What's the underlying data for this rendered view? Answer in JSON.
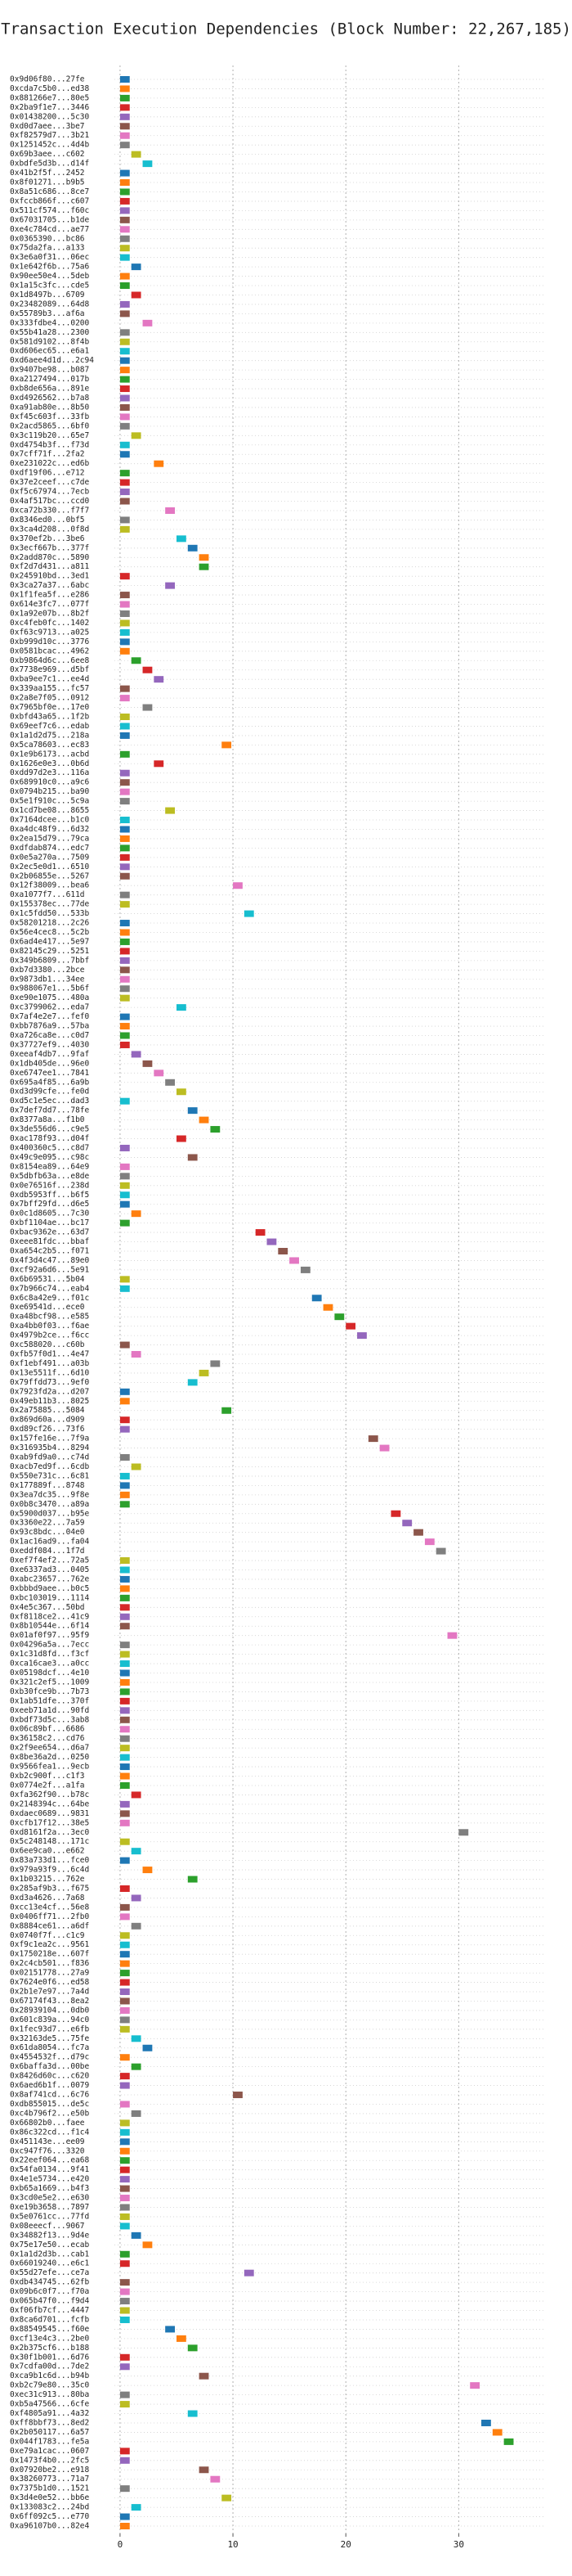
{
  "chart_data": {
    "type": "timeline",
    "title": "Transaction Execution Dependencies (Block Number: 22,267,185)",
    "categories": [
      "0x9d06f80...27fe",
      "0xcda7c5b0...ed38",
      "0x881266e7...80e5",
      "0x2ba9f1e7...3446",
      "0x01438200...5c30",
      "0xd0d7aee...3be7",
      "0xf82579d7...3b21",
      "0x1251452c...4d4b",
      "0x69b3aee...c602",
      "0xbdfe5d3b...d14f",
      "0x41b2f5f...2452",
      "0x8f01271...b9b5",
      "0x8a51c686...8ce7",
      "0xfccb866f...c607",
      "0x511cf574...f60c",
      "0x67031705...b1de",
      "0xe4c784cd...ae77",
      "0x0365390...bc86",
      "0x75da2fa...a133",
      "0x3e6a0f31...06ec",
      "0x1e642f6b...75a6",
      "0x90ee50e4...5deb",
      "0x1a15c3fc...cde5",
      "0x1d8497b...6709",
      "0x23482089...64d8",
      "0x55789b3...af6a",
      "0x333fdbe4...0200",
      "0x55b41a28...2300",
      "0x581d9102...8f4b",
      "0xd606ec65...e6a1",
      "0xd6aee4d1d...2c94",
      "0x9407be98...b087",
      "0xa2127494...017b",
      "0xb8de656a...891e",
      "0xd4926562...b7a8",
      "0xa91ab80e...8b50",
      "0xf45c603f...33fb",
      "0x2acd5865...6bf0",
      "0x3c119b20...65e7",
      "0xd4754b3f...f73d",
      "0x7cff71f...2fa2",
      "0xe231022c...ed6b",
      "0xdf19f06...e712",
      "0x37e2ceef...c7de",
      "0xf5c67974...7ecb",
      "0x4af517bc...ccd0",
      "0xca72b330...f7f7",
      "0x8346ed0...0bf5",
      "0x3ca4d208...0f8d",
      "0x370ef2b...3be6",
      "0x3ecf667b...377f",
      "0x2add870c...5890",
      "0xf2d7d431...a811",
      "0x245910bd...3ed1",
      "0x3ca27a37...6abc",
      "0x1f1fea5f...e286",
      "0x614e3fc7...077f",
      "0x1a92e07b...8b2f",
      "0xc4feb0fc...1402",
      "0xf63c9713...a025",
      "0xb999d10c...3776",
      "0x0581bcac...4962",
      "0xb9864d6c...6ee8",
      "0x7738e969...d5bf",
      "0xba9ee7c1...ee4d",
      "0x339aa155...fc57",
      "0x2a8e7f05...0912",
      "0x7965bf0e...17e0",
      "0xbfd43a65...1f2b",
      "0x69eef7c6...edab",
      "0x1a1d2d75...218a",
      "0x5ca78603...ec83",
      "0x1e9b6173...acbd",
      "0x1626e0e3...0b6d",
      "0xdd97d2e3...116a",
      "0x689910c0...a9c6",
      "0x0794b215...ba90",
      "0x5e1f910c...5c9a",
      "0x1cd7be08...8655",
      "0x7164dcee...b1c0",
      "0xa4dc48f9...6d32",
      "0x2ea15d79...79ca",
      "0xdfdab874...edc7",
      "0x0e5a270a...7509",
      "0x2ec5e0d1...6510",
      "0x2b06855e...5267",
      "0x12f38009...bea6",
      "0xa1077f7...611d",
      "0x155378ec...77de",
      "0x1c5fdd50...533b",
      "0x58201218...2c26",
      "0x56e4cec8...5c2b",
      "0x6ad4e417...5e97",
      "0x82145c29...5251",
      "0x349b6809...7bbf",
      "0xb7d3380...2bce",
      "0x9873db1...34ee",
      "0x988067e1...5b6f",
      "0xe90e1075...480a",
      "0xc3799062...eda7",
      "0x7af4e2e7...fef0",
      "0xbb7876a9...57ba",
      "0xa726ca8e...c0d7",
      "0x37727ef9...4030",
      "0xeeaf4db7...9faf",
      "0x1db405de...96e0",
      "0xe6747ee1...7841",
      "0x695a4f85...6a9b",
      "0xd3d99cfe...fe0d",
      "0xd5c1e5ec...dad3",
      "0x7def7dd7...78fe",
      "0x8377a8a...f1b0",
      "0x3de556d6...c9e5",
      "0xac178f93...d04f",
      "0x400360c5...c8d7",
      "0x49c9e095...c98c",
      "0x8154ea89...64e9",
      "0x5dbfb63a...e8de",
      "0x0e76516f...238d",
      "0xdb5953ff...b6f5",
      "0x7bff29fd...d6e5",
      "0x0c1d8605...7c30",
      "0xbf1104ae...bc17",
      "0xbac9362e...63d7",
      "0xeee81fdc...bbaf",
      "0xa654c2b5...f071",
      "0x4f3d4c47...89e0",
      "0xcf92a6d6...5e91",
      "0x6b69531...5b04",
      "0x7b966c74...eab4",
      "0x6c8a42e9...f01c",
      "0xe69541d...ece0",
      "0xa48bcf98...e585",
      "0xa4bb0f03...f6ae",
      "0x4979b2ce...f6cc",
      "0xc588020...c60b",
      "0xfb57f0d1...4e47",
      "0xf1ebf491...a03b",
      "0x13e5511f...6d10",
      "0x79ffdd73...9ef0",
      "0x7923fd2a...d207",
      "0x49eb11b3...8025",
      "0x2a75885...5084",
      "0x869d60a...d909",
      "0xd89cf26...73f6",
      "0x157fe16e...7f9a",
      "0x316935b4...8294",
      "0xab9fd9a0...c74d",
      "0xacb7ed9f...6cdb",
      "0x550e731c...6c81",
      "0x177889f...8748",
      "0x3ea7dc35...9f8e",
      "0x0b8c3470...a89a",
      "0x5900d037...b95e",
      "0x3360e22...7a59",
      "0x93c8bdc...04e0",
      "0x1ac16ad9...fa04",
      "0xeddf084...1f7d",
      "0xef7f4ef2...72a5",
      "0xe6337ad3...0405",
      "0xabc23657...762e",
      "0xbbbd9aee...b0c5",
      "0xbc103019...1114",
      "0x4e5c367...50bd",
      "0xf8118ce2...41c9",
      "0x8b10544e...6f14",
      "0x01af0f97...95f9",
      "0x04296a5a...7ecc",
      "0x1c31d8fd...f3cf",
      "0xca16cae3...a0cc",
      "0x05198dcf...4e10",
      "0x321c2ef5...1009",
      "0xb30fce9b...7b73",
      "0x1ab51dfe...370f",
      "0xeeb71a1d...90fd",
      "0xbdf73d5c...3ab8",
      "0x06c89bf...6686",
      "0x36158c2...cd76",
      "0x2f9ee654...d6a7",
      "0x8be36a2d...0250",
      "0x9566fea1...9ecb",
      "0xb2c900f...c1f3",
      "0x0774e2f...a1fa",
      "0xfa362f90...b78c",
      "0x2148394c...64be",
      "0xdaec0689...9831",
      "0xcfb17f12...38e5",
      "0xd8161f2a...3ec0",
      "0x5c248148...171c",
      "0x6ee9ca0...e662",
      "0x83a733d1...fce0",
      "0x979a93f9...6c4d",
      "0x1b03215...762e",
      "0x285af9b3...f675",
      "0xd3a4626...7a68",
      "0xcc13e4cf...56e8",
      "0x0406ff71...2fb0",
      "0x8884ce61...a6df",
      "0x0740f7f...c1c9",
      "0xf9c1ea2c...9561",
      "0x1750218e...607f",
      "0x2c4cb501...f836",
      "0x02151778...27a9",
      "0x7624e0f6...ed58",
      "0x2b1e7e97...7a4d",
      "0x67174f43...8ea2",
      "0x28939104...0db0",
      "0x601c839a...94c0",
      "0x1fec93d7...e6fb",
      "0x32163de5...75fe",
      "0x61da8054...fc7a",
      "0x4554532f...d79c",
      "0x6baffa3d...00be",
      "0x8426d60c...c620",
      "0x6aed6b1f...0079",
      "0x8af741cd...6c76",
      "0xdb855015...de5c",
      "0xc4b796f2...e50b",
      "0x66802b0...faee",
      "0x86c322cd...f1c4",
      "0x451143e...ee09",
      "0xc947f76...3320",
      "0x22eef064...ea68",
      "0x54fa0134...9f41",
      "0x4e1e5734...e420",
      "0xb65a1669...b4f3",
      "0x3cd0e5e2...e630",
      "0xe19b3658...7897",
      "0x5e0761cc...77fd",
      "0x08eeecf...9067",
      "0x34882f13...9d4e",
      "0x75e17e50...ecab",
      "0x1a1d2d3b...cab1",
      "0x66019240...e6c1",
      "0x55d27efe...ce7a",
      "0xdb434745...62fb",
      "0x09b6c0f7...f70a",
      "0x065b47f0...f9d4",
      "0xf06fb7cf...4447",
      "0x8ca6d701...fcfb",
      "0x88549545...f60e",
      "0xcf13e4c3...2be0",
      "0x2b375cf6...b188",
      "0x30f1b001...6d76",
      "0x7cdfa00d...7de2",
      "0xca9b1c6d...b94b",
      "0xb2c79e80...35c0",
      "0xec31c913...80ba",
      "0xb5a47566...6cfe",
      "0xf4805a91...4a32",
      "0xff8bbf73...8ed2",
      "0x2b050117...6a57",
      "0x044f1783...fe5a",
      "0xe79a1cac...0607",
      "0x1473f4b0...2fc5",
      "0x07920be2...e918",
      "0x38260773...71a7",
      "0x7375b1d0...1521",
      "0x3d4e0e52...bb6e",
      "0x133083c2...24bd",
      "0x6ff092c5...e770",
      "0xa96107b0...82e4"
    ],
    "values": [
      0,
      0,
      0,
      0,
      0,
      0,
      0,
      0,
      1,
      2,
      0,
      0,
      0,
      0,
      0,
      0,
      0,
      0,
      0,
      0,
      1,
      0,
      0,
      1,
      0,
      0,
      2,
      0,
      0,
      0,
      0,
      0,
      0,
      0,
      0,
      0,
      0,
      0,
      1,
      0,
      0,
      3,
      0,
      0,
      0,
      0,
      4,
      0,
      0,
      5,
      6,
      7,
      7,
      0,
      4,
      0,
      0,
      0,
      0,
      0,
      0,
      0,
      1,
      2,
      3,
      0,
      0,
      2,
      0,
      0,
      0,
      9,
      0,
      3,
      0,
      0,
      0,
      0,
      4,
      0,
      0,
      0,
      0,
      0,
      0,
      0,
      10,
      0,
      0,
      11,
      0,
      0,
      0,
      0,
      0,
      0,
      0,
      0,
      0,
      5,
      0,
      0,
      0,
      0,
      1,
      2,
      3,
      4,
      5,
      0,
      6,
      7,
      8,
      5,
      0,
      6,
      0,
      0,
      0,
      0,
      0,
      1,
      0,
      12,
      13,
      14,
      15,
      16,
      0,
      0,
      17,
      18,
      19,
      20,
      21,
      0,
      1,
      8,
      7,
      6,
      0,
      0,
      9,
      0,
      0,
      22,
      23,
      0,
      1,
      0,
      0,
      0,
      0,
      24,
      25,
      26,
      27,
      28,
      0,
      0,
      0,
      0,
      0,
      0,
      0,
      0,
      29,
      0,
      0,
      0,
      0,
      0,
      0,
      0,
      0,
      0,
      0,
      0,
      0,
      0,
      0,
      0,
      0,
      1,
      0,
      0,
      0,
      30,
      0,
      1,
      0,
      2,
      6,
      0,
      1,
      0,
      0,
      1,
      0,
      0,
      0,
      0,
      0,
      0,
      0,
      0,
      0,
      0,
      0,
      1,
      2,
      0,
      1,
      0,
      0,
      10,
      0,
      1,
      0,
      0,
      0,
      0,
      0,
      0,
      0,
      0,
      0,
      0,
      0,
      0,
      1,
      2,
      0,
      0,
      11,
      0,
      0,
      0,
      0,
      0,
      4,
      5,
      6,
      0,
      0,
      7,
      31,
      0,
      0,
      6,
      32,
      33,
      34,
      0,
      0,
      7,
      8,
      0,
      9,
      1,
      0,
      0
    ],
    "palette": [
      "#1f77b4",
      "#ff7f0e",
      "#2ca02c",
      "#d62728",
      "#9467bd",
      "#8c564b",
      "#e377c2",
      "#7f7f7f",
      "#bcbd22",
      "#17becf"
    ],
    "xlim": [
      -0.5,
      37.5
    ],
    "xticks": [
      0,
      10,
      20,
      30
    ],
    "grid": true
  }
}
